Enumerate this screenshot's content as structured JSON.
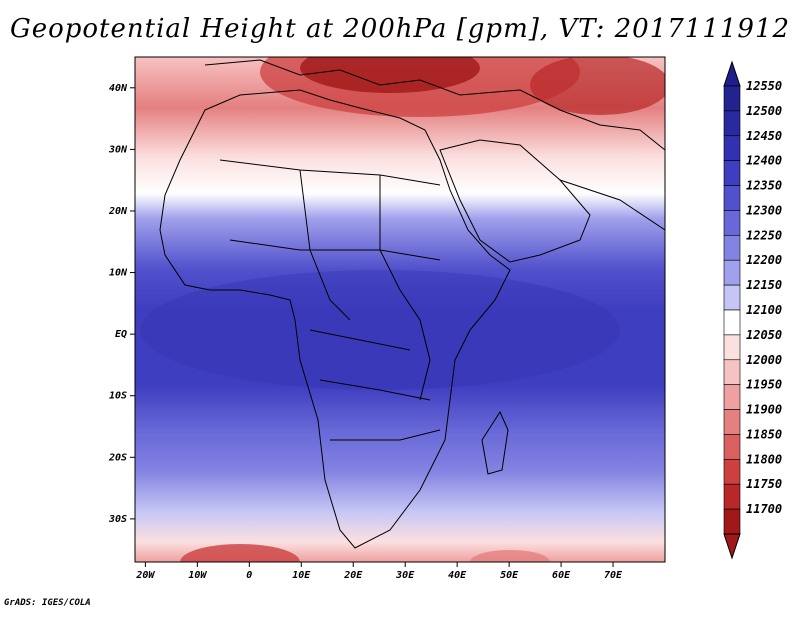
{
  "title": "Geopotential Height at 200hPa [gpm], VT: 2017111912",
  "credit": "GrADS: IGES/COLA",
  "map": {
    "lon_range": [
      -22,
      80
    ],
    "lat_range": [
      -37,
      45
    ],
    "x_ticks": [
      {
        "lon": -20,
        "label": "20W"
      },
      {
        "lon": -10,
        "label": "10W"
      },
      {
        "lon": 0,
        "label": "0"
      },
      {
        "lon": 10,
        "label": "10E"
      },
      {
        "lon": 20,
        "label": "20E"
      },
      {
        "lon": 30,
        "label": "30E"
      },
      {
        "lon": 40,
        "label": "40E"
      },
      {
        "lon": 50,
        "label": "50E"
      },
      {
        "lon": 60,
        "label": "60E"
      },
      {
        "lon": 70,
        "label": "70E"
      }
    ],
    "y_ticks": [
      {
        "lat": 40,
        "label": "40N"
      },
      {
        "lat": 30,
        "label": "30N"
      },
      {
        "lat": 20,
        "label": "20N"
      },
      {
        "lat": 10,
        "label": "10N"
      },
      {
        "lat": 0,
        "label": "EQ"
      },
      {
        "lat": -10,
        "label": "10S"
      },
      {
        "lat": -20,
        "label": "20S"
      },
      {
        "lat": -30,
        "label": "30S"
      }
    ]
  },
  "colorbar": {
    "arrow_top_color": "#1e1e8c",
    "arrow_bottom_color": "#a01818",
    "levels": [
      {
        "label": "12550",
        "color": "#23238f"
      },
      {
        "label": "12500",
        "color": "#2a2aa0"
      },
      {
        "label": "12450",
        "color": "#3232b0"
      },
      {
        "label": "12400",
        "color": "#3e3ec0"
      },
      {
        "label": "12350",
        "color": "#5151cc"
      },
      {
        "label": "12300",
        "color": "#6868d8"
      },
      {
        "label": "12250",
        "color": "#8383e2"
      },
      {
        "label": "12200",
        "color": "#a0a0ec"
      },
      {
        "label": "12150",
        "color": "#c6c6f5"
      },
      {
        "label": "12100",
        "color": "#ffffff"
      },
      {
        "label": "12050",
        "color": "#fbe0e0"
      },
      {
        "label": "12000",
        "color": "#f7c2c2"
      },
      {
        "label": "11950",
        "color": "#efa0a0"
      },
      {
        "label": "11900",
        "color": "#e58080"
      },
      {
        "label": "11850",
        "color": "#da6060"
      },
      {
        "label": "11800",
        "color": "#cc4040"
      },
      {
        "label": "11750",
        "color": "#b82828"
      },
      {
        "label": "11700",
        "color": "#a01818"
      }
    ]
  }
}
